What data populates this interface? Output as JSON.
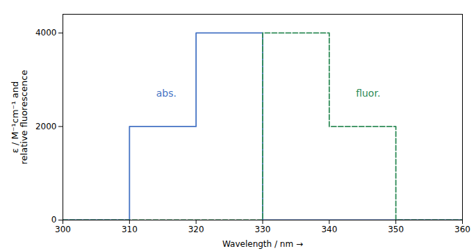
{
  "chart_data": {
    "type": "line",
    "xlabel": "Wavelength / nm",
    "ylabel": "ε / M⁻¹cm⁻¹ and\nrelative fluorescence",
    "series": [
      {
        "color": "#4472C4",
        "line_style": "solid",
        "x": [
          300,
          310,
          310,
          320,
          320,
          330,
          330,
          360
        ],
        "values": [
          0,
          0,
          2000,
          2000,
          4000,
          4000,
          0,
          0
        ]
      },
      {
        "color": "#2E8B57",
        "line_style": "dashed",
        "x": [
          300,
          330,
          330,
          340,
          340,
          350,
          350,
          360
        ],
        "values": [
          0,
          0,
          4000,
          4000,
          2000,
          2000,
          0,
          0
        ]
      }
    ],
    "annotations": [
      {
        "text": "abs.",
        "x": 314,
        "y": 2700,
        "color": "#4472C4"
      },
      {
        "text": "fluor.",
        "x": 344,
        "y": 2700,
        "color": "#2E8B57"
      }
    ],
    "xlim": [
      300,
      360
    ],
    "ylim": [
      0,
      4400
    ],
    "xticks": [
      300,
      310,
      320,
      330,
      340,
      350,
      360
    ],
    "yticks": [
      0,
      2000,
      4000
    ],
    "grid": false
  }
}
